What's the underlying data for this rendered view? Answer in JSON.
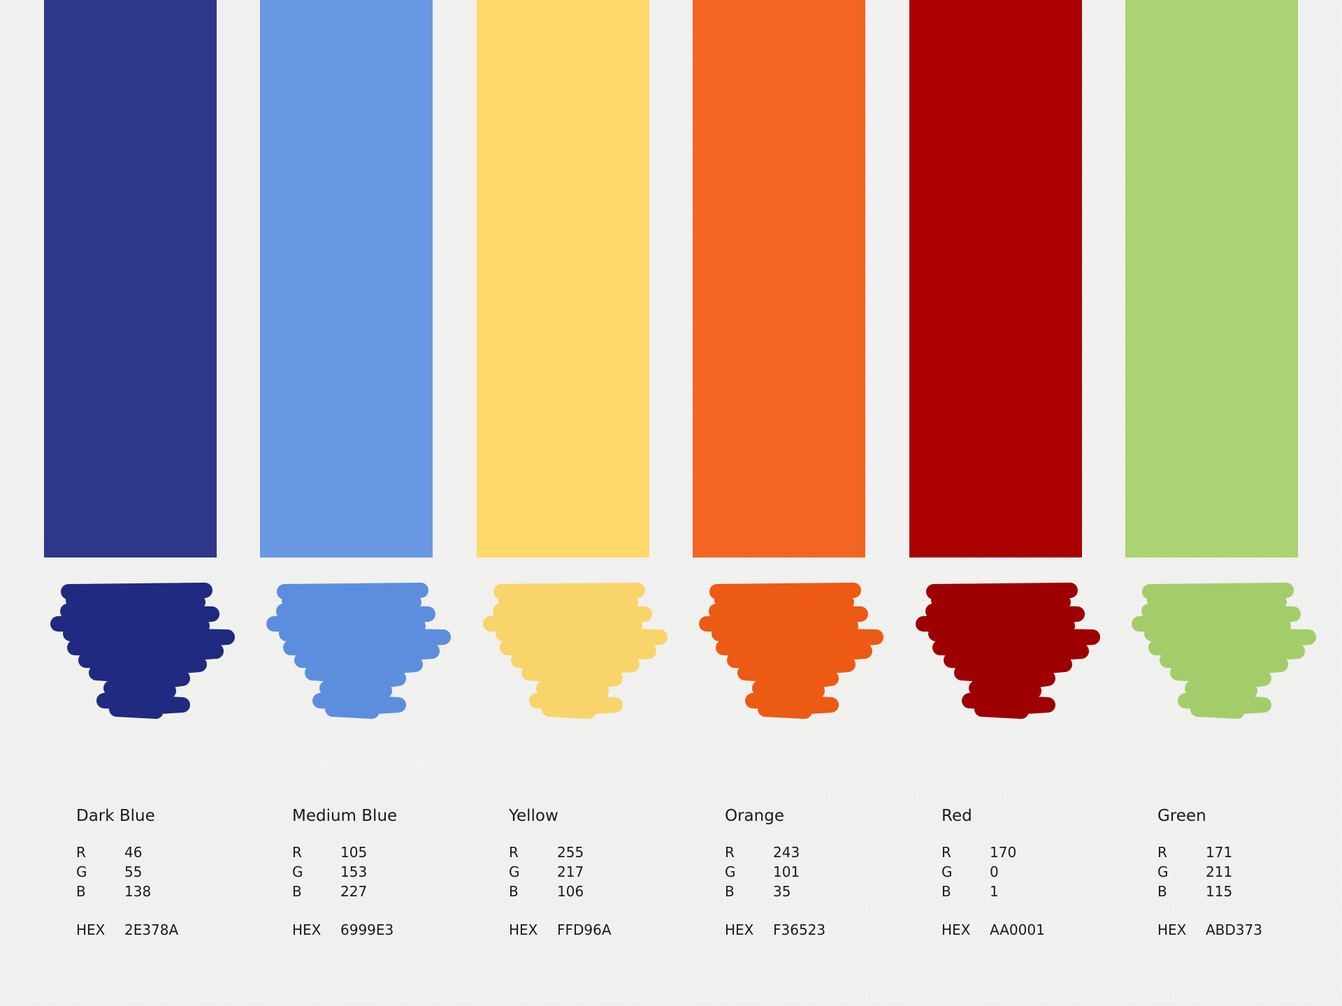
{
  "swatches": [
    {
      "name": "Dark Blue",
      "r": "46",
      "g": "55",
      "b": "138",
      "hex": "2E378A",
      "color": "#2E378A",
      "brush_color": "#1F2A80"
    },
    {
      "name": "Medium Blue",
      "r": "105",
      "g": "153",
      "b": "227",
      "hex": "6999E3",
      "color": "#6999E3",
      "brush_color": "#5C8EDD"
    },
    {
      "name": "Yellow",
      "r": "255",
      "g": "217",
      "b": "106",
      "hex": "FFD96A",
      "color": "#FFD96A",
      "brush_color": "#F8D46A"
    },
    {
      "name": "Orange",
      "r": "243",
      "g": "101",
      "b": "35",
      "hex": "F36523",
      "color": "#F36523",
      "brush_color": "#EC5A14"
    },
    {
      "name": "Red",
      "r": "170",
      "g": "0",
      "b": "1",
      "hex": "AA0001",
      "color": "#AA0001",
      "brush_color": "#9E0002"
    },
    {
      "name": "Green",
      "r": "171",
      "g": "211",
      "b": "115",
      "hex": "ABD373",
      "color": "#ABD373",
      "brush_color": "#A3CD6A"
    }
  ],
  "labels": {
    "r": "R",
    "g": "G",
    "b": "B",
    "hex": "HEX"
  }
}
